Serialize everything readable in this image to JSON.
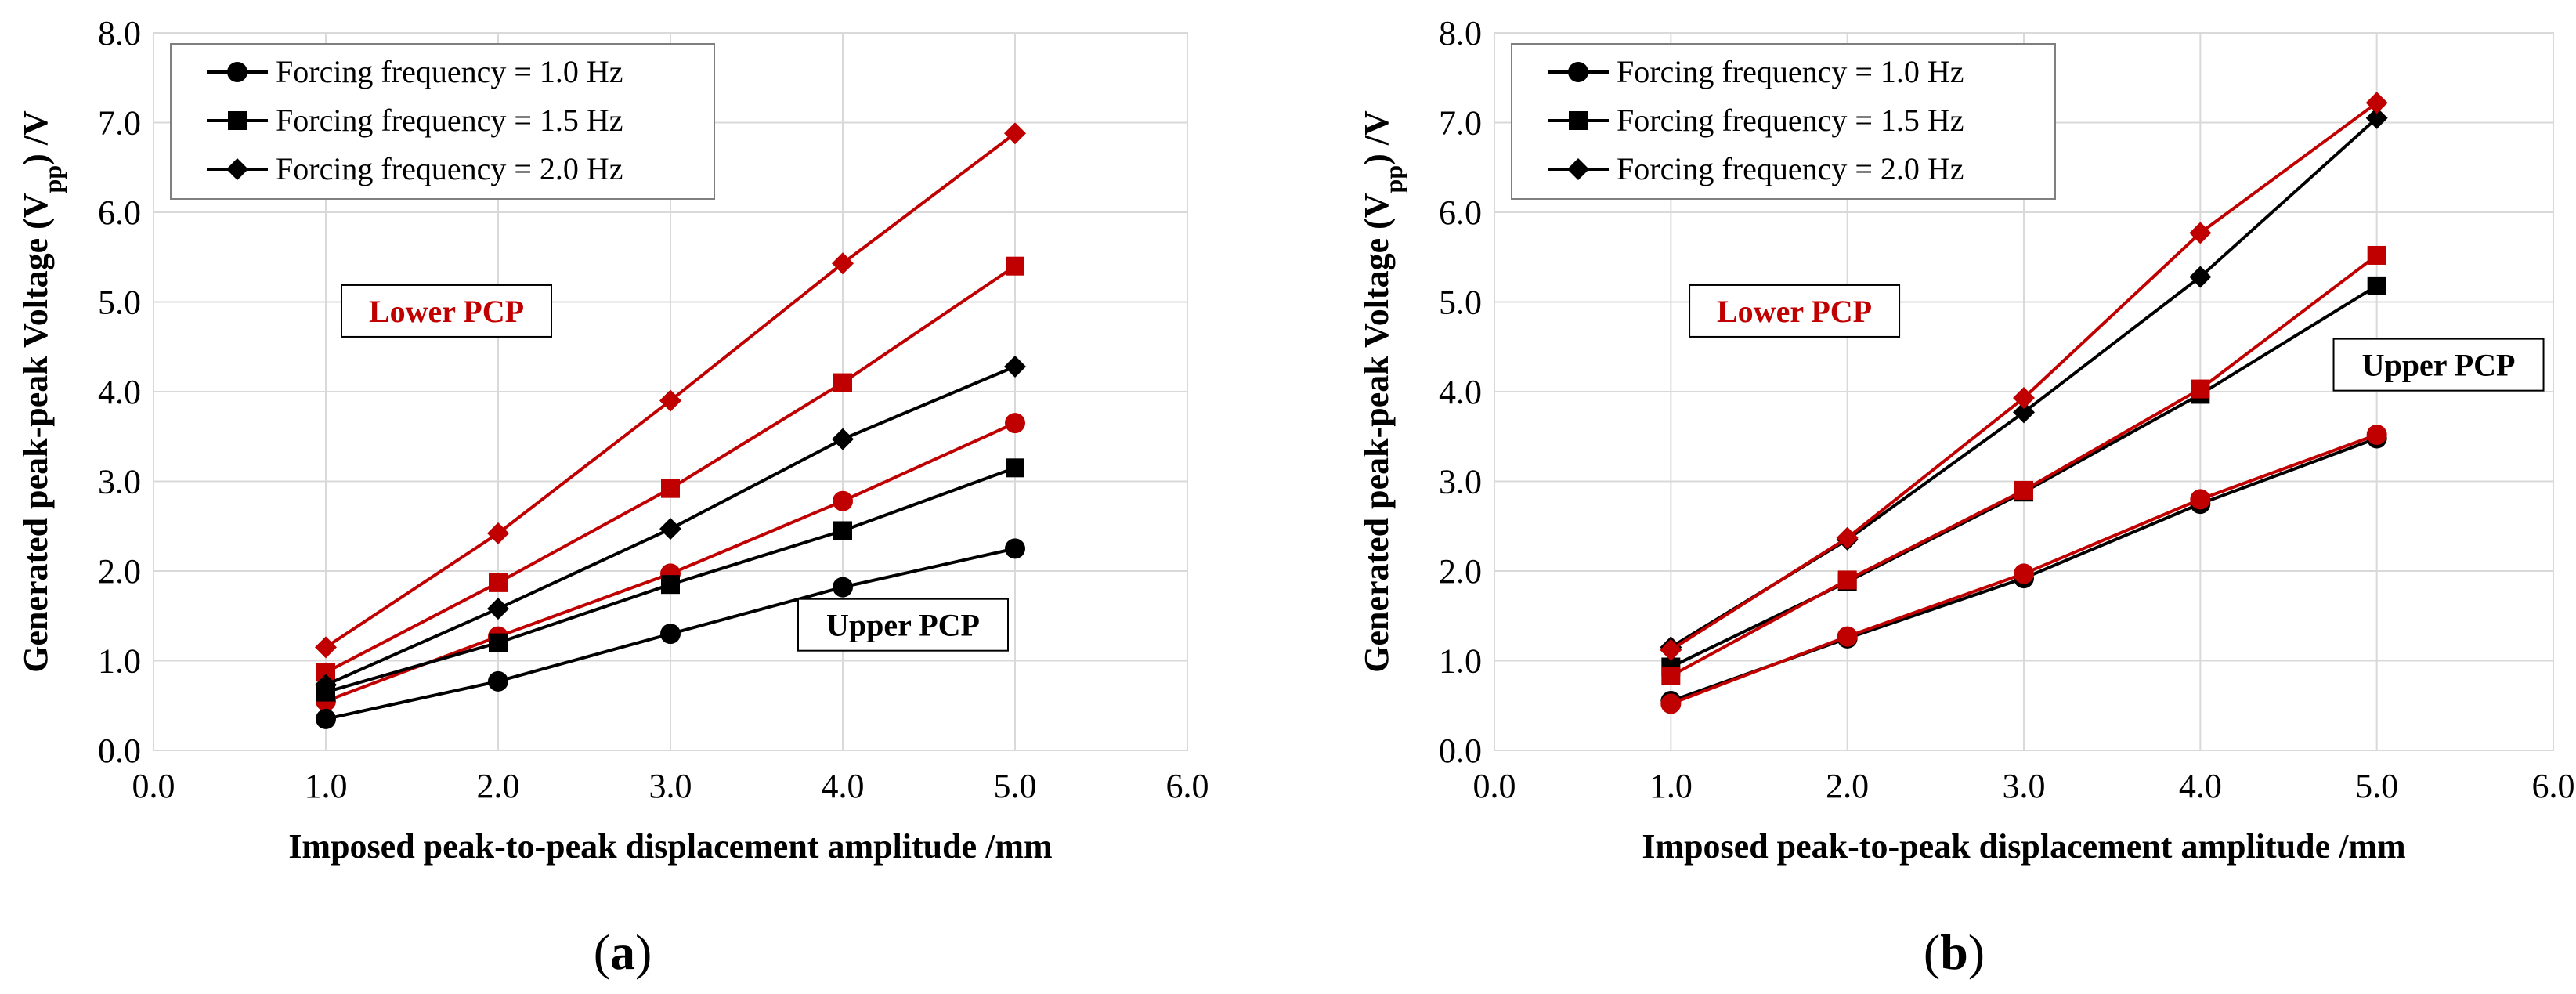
{
  "chart_data": [
    {
      "type": "line",
      "panel": "a",
      "caption": "(a)",
      "caption_open": "(",
      "caption_letter": "a",
      "caption_close": ")",
      "xlabel": "Imposed peak-to-peak displacement amplitude /mm",
      "ylabel_parts": [
        "Generated peak-peak  Voltage (V",
        "pp",
        ") /V"
      ],
      "xlim": [
        0,
        6
      ],
      "ylim": [
        0,
        8
      ],
      "xticks": [
        "0.0",
        "1.0",
        "2.0",
        "3.0",
        "4.0",
        "5.0",
        "6.0"
      ],
      "yticks": [
        "0.0",
        "1.0",
        "2.0",
        "3.0",
        "4.0",
        "5.0",
        "6.0",
        "7.0",
        "8.0"
      ],
      "legend": [
        {
          "label": "Forcing frequency = 1.0 Hz",
          "marker": "circle"
        },
        {
          "label": "Forcing frequency = 1.5 Hz",
          "marker": "square"
        },
        {
          "label": "Forcing frequency = 2.0 Hz",
          "marker": "diamond"
        }
      ],
      "annotations": [
        {
          "text": "Lower PCP",
          "color": "red",
          "x": 1.7,
          "y": 4.9
        },
        {
          "text": "Upper PCP",
          "color": "black",
          "x": 4.35,
          "y": 1.4
        }
      ],
      "x": [
        1,
        2,
        3,
        4,
        5
      ],
      "series": [
        {
          "name": "Lower PCP 1.0 Hz",
          "color": "#c00000",
          "marker": "circle",
          "values": [
            0.55,
            1.27,
            1.97,
            2.78,
            3.65
          ]
        },
        {
          "name": "Lower PCP 1.5 Hz",
          "color": "#c00000",
          "marker": "square",
          "values": [
            0.87,
            1.87,
            2.92,
            4.1,
            5.4
          ]
        },
        {
          "name": "Lower PCP 2.0 Hz",
          "color": "#c00000",
          "marker": "diamond",
          "values": [
            1.15,
            2.42,
            3.9,
            5.43,
            6.88
          ]
        },
        {
          "name": "Upper PCP 1.0 Hz",
          "color": "#000000",
          "marker": "circle",
          "values": [
            0.35,
            0.77,
            1.3,
            1.82,
            2.25
          ]
        },
        {
          "name": "Upper PCP 1.5 Hz",
          "color": "#000000",
          "marker": "square",
          "values": [
            0.65,
            1.2,
            1.85,
            2.45,
            3.15
          ]
        },
        {
          "name": "Upper PCP 2.0 Hz",
          "color": "#000000",
          "marker": "diamond",
          "values": [
            0.73,
            1.58,
            2.47,
            3.47,
            4.28
          ]
        }
      ]
    },
    {
      "type": "line",
      "panel": "b",
      "caption": "(b)",
      "caption_open": "(",
      "caption_letter": "b",
      "caption_close": ")",
      "xlabel": "Imposed peak-to-peak displacement amplitude /mm",
      "ylabel_parts": [
        "Generated peak-peak  Voltage (V",
        "pp",
        ") /V"
      ],
      "xlim": [
        0,
        6
      ],
      "ylim": [
        0,
        8
      ],
      "xticks": [
        "0.0",
        "1.0",
        "2.0",
        "3.0",
        "4.0",
        "5.0",
        "6.0"
      ],
      "yticks": [
        "0.0",
        "1.0",
        "2.0",
        "3.0",
        "4.0",
        "5.0",
        "6.0",
        "7.0",
        "8.0"
      ],
      "legend": [
        {
          "label": "Forcing frequency = 1.0 Hz",
          "marker": "circle"
        },
        {
          "label": "Forcing frequency = 1.5 Hz",
          "marker": "square"
        },
        {
          "label": "Forcing frequency = 2.0 Hz",
          "marker": "diamond"
        }
      ],
      "annotations": [
        {
          "text": "Lower PCP",
          "color": "red",
          "x": 1.7,
          "y": 4.9
        },
        {
          "text": "Upper PCP",
          "color": "black",
          "x": 5.35,
          "y": 4.3
        }
      ],
      "x": [
        1,
        2,
        3,
        4,
        5
      ],
      "series": [
        {
          "name": "Upper PCP 1.0 Hz",
          "color": "#000000",
          "marker": "circle",
          "values": [
            0.55,
            1.25,
            1.92,
            2.75,
            3.48
          ]
        },
        {
          "name": "Upper PCP 1.5 Hz",
          "color": "#000000",
          "marker": "square",
          "values": [
            0.93,
            1.88,
            2.88,
            3.97,
            5.18
          ]
        },
        {
          "name": "Upper PCP 2.0 Hz",
          "color": "#000000",
          "marker": "diamond",
          "values": [
            1.15,
            2.35,
            3.77,
            5.28,
            7.05
          ]
        },
        {
          "name": "Lower PCP 1.0 Hz",
          "color": "#c00000",
          "marker": "circle",
          "values": [
            0.52,
            1.27,
            1.97,
            2.8,
            3.52
          ]
        },
        {
          "name": "Lower PCP 1.5 Hz",
          "color": "#c00000",
          "marker": "square",
          "values": [
            0.83,
            1.9,
            2.9,
            4.03,
            5.52
          ]
        },
        {
          "name": "Lower PCP 2.0 Hz",
          "color": "#c00000",
          "marker": "diamond",
          "values": [
            1.12,
            2.37,
            3.93,
            5.77,
            7.22
          ]
        }
      ]
    }
  ]
}
